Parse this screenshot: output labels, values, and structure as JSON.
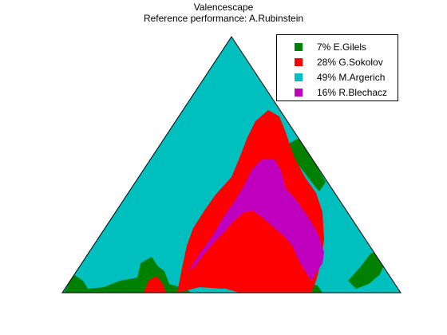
{
  "chart_data": {
    "type": "ternary",
    "title": "Valencescape",
    "subtitle": "Reference performance: A.Rubinstein",
    "legend_position": "top-right",
    "series": [
      {
        "name": "7% E.Gilels",
        "share_percent": 7,
        "color": "#008000"
      },
      {
        "name": "28% G.Sokolov",
        "share_percent": 28,
        "color": "#ff0000"
      },
      {
        "name": "49% M.Argerich",
        "share_percent": 49,
        "color": "#00bfbf"
      },
      {
        "name": "16% R.Blechacz",
        "share_percent": 16,
        "color": "#bf00bf"
      }
    ]
  }
}
